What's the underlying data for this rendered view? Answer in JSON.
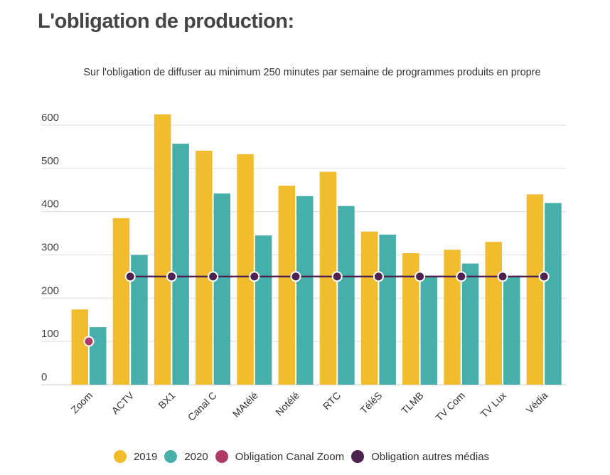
{
  "header": {
    "title": "L'obligation de production:",
    "subtitle": "Sur l'obligation de diffuser au minimum 250 minutes par semaine de programmes produits en propre"
  },
  "chart_data": {
    "type": "bar",
    "title": "L'obligation de production:",
    "subtitle": "Sur l'obligation de diffuser au minimum 250 minutes par semaine de programmes produits en propre",
    "xlabel": "",
    "ylabel": "",
    "ylim": [
      0,
      600
    ],
    "yticks": [
      0,
      100,
      200,
      300,
      400,
      500,
      600
    ],
    "grid": true,
    "legend_position": "bottom",
    "categories": [
      "Zoom",
      "ACTV",
      "BX1",
      "Canal C",
      "MAtélé",
      "Notélé",
      "RTC",
      "TéléS",
      "TLMB",
      "TV Com",
      "TV Lux",
      "Védia"
    ],
    "series": [
      {
        "name": "2019",
        "type": "bar",
        "color": "#F2BC2F",
        "values": [
          174,
          385,
          625,
          541,
          533,
          460,
          492,
          354,
          304,
          312,
          330,
          440
        ]
      },
      {
        "name": "2020",
        "type": "bar",
        "color": "#47AFA9",
        "values": [
          133,
          300,
          557,
          442,
          345,
          436,
          413,
          347,
          250,
          280,
          250,
          420
        ]
      },
      {
        "name": "Obligation Canal Zoom",
        "type": "point",
        "color": "#B03A66",
        "values": [
          100,
          null,
          null,
          null,
          null,
          null,
          null,
          null,
          null,
          null,
          null,
          null
        ]
      },
      {
        "name": "Obligation autres médias",
        "type": "line",
        "color": "#4E2250",
        "values": [
          null,
          250,
          250,
          250,
          250,
          250,
          250,
          250,
          250,
          250,
          250,
          250
        ]
      }
    ]
  },
  "legend": [
    {
      "label": "2019",
      "color": "#F2BC2F"
    },
    {
      "label": "2020",
      "color": "#47AFA9"
    },
    {
      "label": "Obligation Canal Zoom",
      "color": "#B03A66"
    },
    {
      "label": "Obligation autres médias",
      "color": "#4E2250"
    }
  ]
}
